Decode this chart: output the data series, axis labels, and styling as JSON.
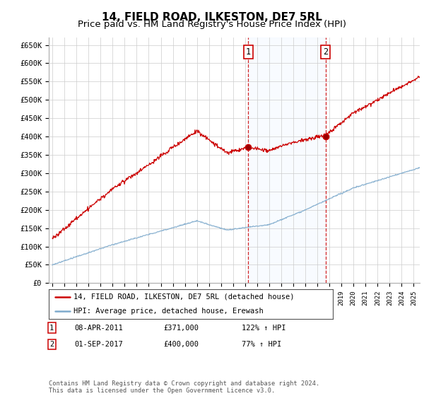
{
  "title": "14, FIELD ROAD, ILKESTON, DE7 5RL",
  "subtitle": "Price paid vs. HM Land Registry's House Price Index (HPI)",
  "ylim": [
    0,
    670000
  ],
  "yticks": [
    0,
    50000,
    100000,
    150000,
    200000,
    250000,
    300000,
    350000,
    400000,
    450000,
    500000,
    550000,
    600000,
    650000
  ],
  "ytick_labels": [
    "£0",
    "£50K",
    "£100K",
    "£150K",
    "£200K",
    "£250K",
    "£300K",
    "£350K",
    "£400K",
    "£450K",
    "£500K",
    "£550K",
    "£600K",
    "£650K"
  ],
  "sale1_date": 2011.27,
  "sale1_price": 371000,
  "sale1_label": "1",
  "sale2_date": 2017.67,
  "sale2_price": 400000,
  "sale2_label": "2",
  "legend_entry1": "14, FIELD ROAD, ILKESTON, DE7 5RL (detached house)",
  "legend_entry2": "HPI: Average price, detached house, Erewash",
  "table_row1_num": "1",
  "table_row1_date": "08-APR-2011",
  "table_row1_price": "£371,000",
  "table_row1_hpi": "122% ↑ HPI",
  "table_row2_num": "2",
  "table_row2_date": "01-SEP-2017",
  "table_row2_price": "£400,000",
  "table_row2_hpi": "77% ↑ HPI",
  "footnote": "Contains HM Land Registry data © Crown copyright and database right 2024.\nThis data is licensed under the Open Government Licence v3.0.",
  "red_color": "#cc0000",
  "blue_color": "#7eaacc",
  "shade_color": "#ddeeff",
  "title_fontsize": 11,
  "subtitle_fontsize": 9.5
}
